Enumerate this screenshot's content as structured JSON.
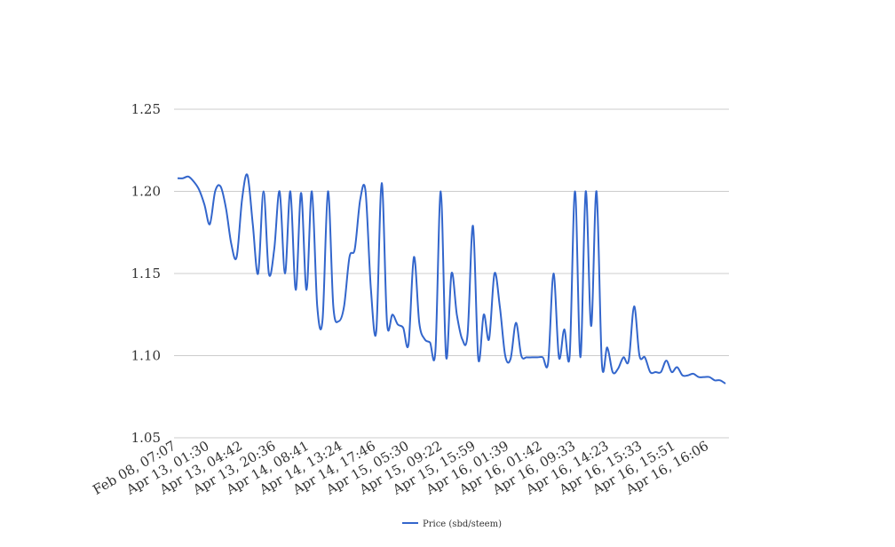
{
  "chart_data": {
    "type": "line",
    "title": "",
    "xlabel": "",
    "ylabel": "",
    "ylim": [
      1.05,
      1.25
    ],
    "y_ticks": [
      "1.05",
      "1.10",
      "1.15",
      "1.20",
      "1.25"
    ],
    "x_tick_labels": [
      "Feb 08, 07:07",
      "Apr 13, 01:30",
      "Apr 13, 04:42",
      "Apr 13, 20:36",
      "Apr 14, 08:41",
      "Apr 14, 13:24",
      "Apr 14, 17:46",
      "Apr 15, 05:30",
      "Apr 15, 09:22",
      "Apr 15, 15:59",
      "Apr 16, 01:39",
      "Apr 16, 01:42",
      "Apr 16, 09:33",
      "Apr 16, 14:23",
      "Apr 16, 15:33",
      "Apr 16, 15:51",
      "Apr 16, 16:06"
    ],
    "grid": true,
    "legend_position": "bottom",
    "series": [
      {
        "name": "Price (sbd/steem)",
        "color": "#3366cc",
        "values": [
          1.208,
          1.208,
          1.209,
          1.206,
          1.201,
          1.192,
          1.18,
          1.2,
          1.203,
          1.19,
          1.168,
          1.16,
          1.195,
          1.21,
          1.18,
          1.15,
          1.2,
          1.15,
          1.165,
          1.2,
          1.15,
          1.2,
          1.14,
          1.199,
          1.14,
          1.2,
          1.13,
          1.122,
          1.2,
          1.13,
          1.121,
          1.13,
          1.16,
          1.165,
          1.195,
          1.2,
          1.14,
          1.115,
          1.205,
          1.12,
          1.125,
          1.119,
          1.117,
          1.107,
          1.16,
          1.12,
          1.11,
          1.108,
          1.103,
          1.2,
          1.099,
          1.15,
          1.125,
          1.11,
          1.113,
          1.179,
          1.098,
          1.125,
          1.11,
          1.15,
          1.13,
          1.1,
          1.098,
          1.12,
          1.1,
          1.099,
          1.099,
          1.099,
          1.099,
          1.096,
          1.15,
          1.099,
          1.116,
          1.1,
          1.2,
          1.099,
          1.2,
          1.118,
          1.2,
          1.095,
          1.105,
          1.09,
          1.092,
          1.099,
          1.097,
          1.13,
          1.1,
          1.099,
          1.09,
          1.09,
          1.09,
          1.097,
          1.09,
          1.093,
          1.088,
          1.088,
          1.089,
          1.087,
          1.087,
          1.087,
          1.085,
          1.085,
          1.083
        ]
      }
    ]
  }
}
